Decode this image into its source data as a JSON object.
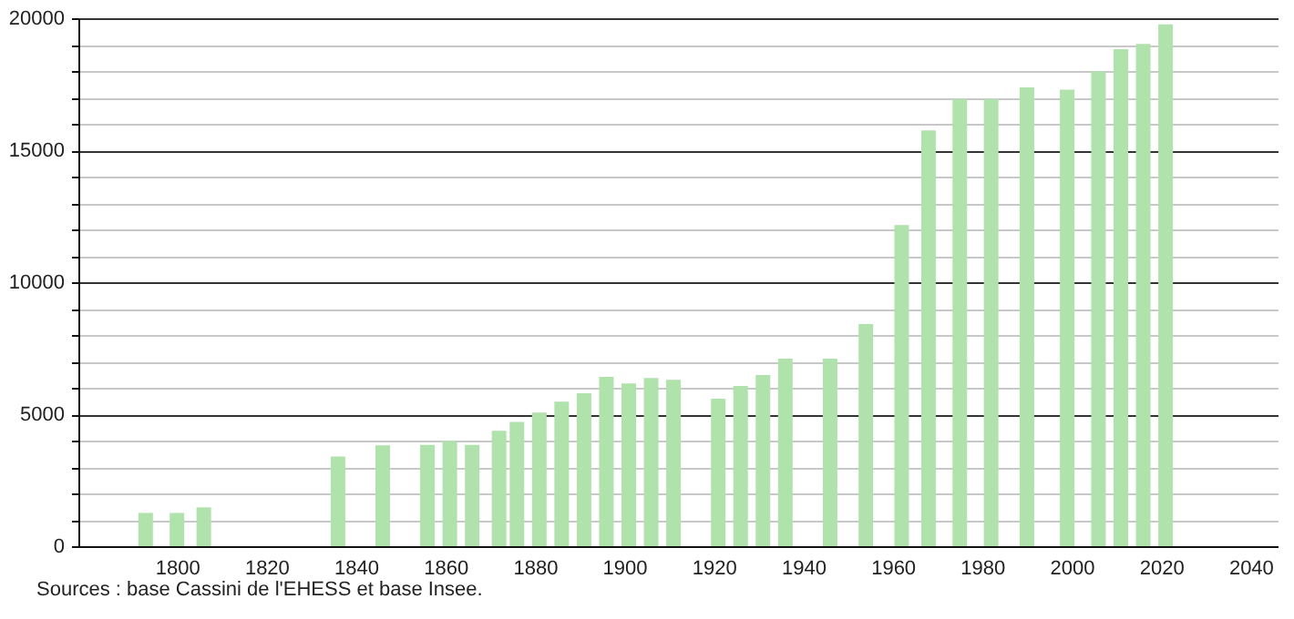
{
  "chart_data": {
    "type": "bar",
    "x": [
      1793,
      1800,
      1806,
      1836,
      1846,
      1856,
      1861,
      1866,
      1872,
      1876,
      1881,
      1886,
      1891,
      1896,
      1901,
      1906,
      1911,
      1921,
      1926,
      1931,
      1936,
      1946,
      1954,
      1962,
      1968,
      1975,
      1982,
      1990,
      1999,
      2006,
      2011,
      2016,
      2021
    ],
    "values": [
      1260,
      1260,
      1470,
      3400,
      3820,
      3840,
      3980,
      3840,
      4370,
      4710,
      5060,
      5470,
      5790,
      6410,
      6160,
      6370,
      6300,
      5590,
      6070,
      6480,
      7100,
      7100,
      8410,
      12160,
      15750,
      16940,
      16940,
      17380,
      17290,
      17980,
      18830,
      19030,
      19770
    ],
    "color": "#b0e2ac",
    "xlim": [
      1780,
      2044
    ],
    "xticks": [
      1800,
      1820,
      1840,
      1860,
      1880,
      1900,
      1920,
      1940,
      1960,
      1980,
      2000,
      2020,
      2040
    ],
    "ylim": [
      0,
      20000
    ],
    "yticks": [
      0,
      {
        "value": 1000,
        "label": null
      },
      {
        "value": 2000,
        "label": null
      },
      {
        "value": 3000,
        "label": null
      },
      {
        "value": 4000,
        "label": null
      },
      5000,
      {
        "value": 6000,
        "label": null
      },
      {
        "value": 7000,
        "label": null
      },
      {
        "value": 8000,
        "label": null
      },
      {
        "value": 9000,
        "label": null
      },
      10000,
      {
        "value": 11000,
        "label": null
      },
      {
        "value": 12000,
        "label": null
      },
      {
        "value": 13000,
        "label": null
      },
      {
        "value": 14000,
        "label": null
      },
      15000,
      {
        "value": 16000,
        "label": null
      },
      {
        "value": 17000,
        "label": null
      },
      {
        "value": 18000,
        "label": null
      },
      {
        "value": 19000,
        "label": null
      },
      20000
    ],
    "grid": "y",
    "annotations": [
      "Sources : base Cassini de l'EHESS et base Insee."
    ]
  }
}
